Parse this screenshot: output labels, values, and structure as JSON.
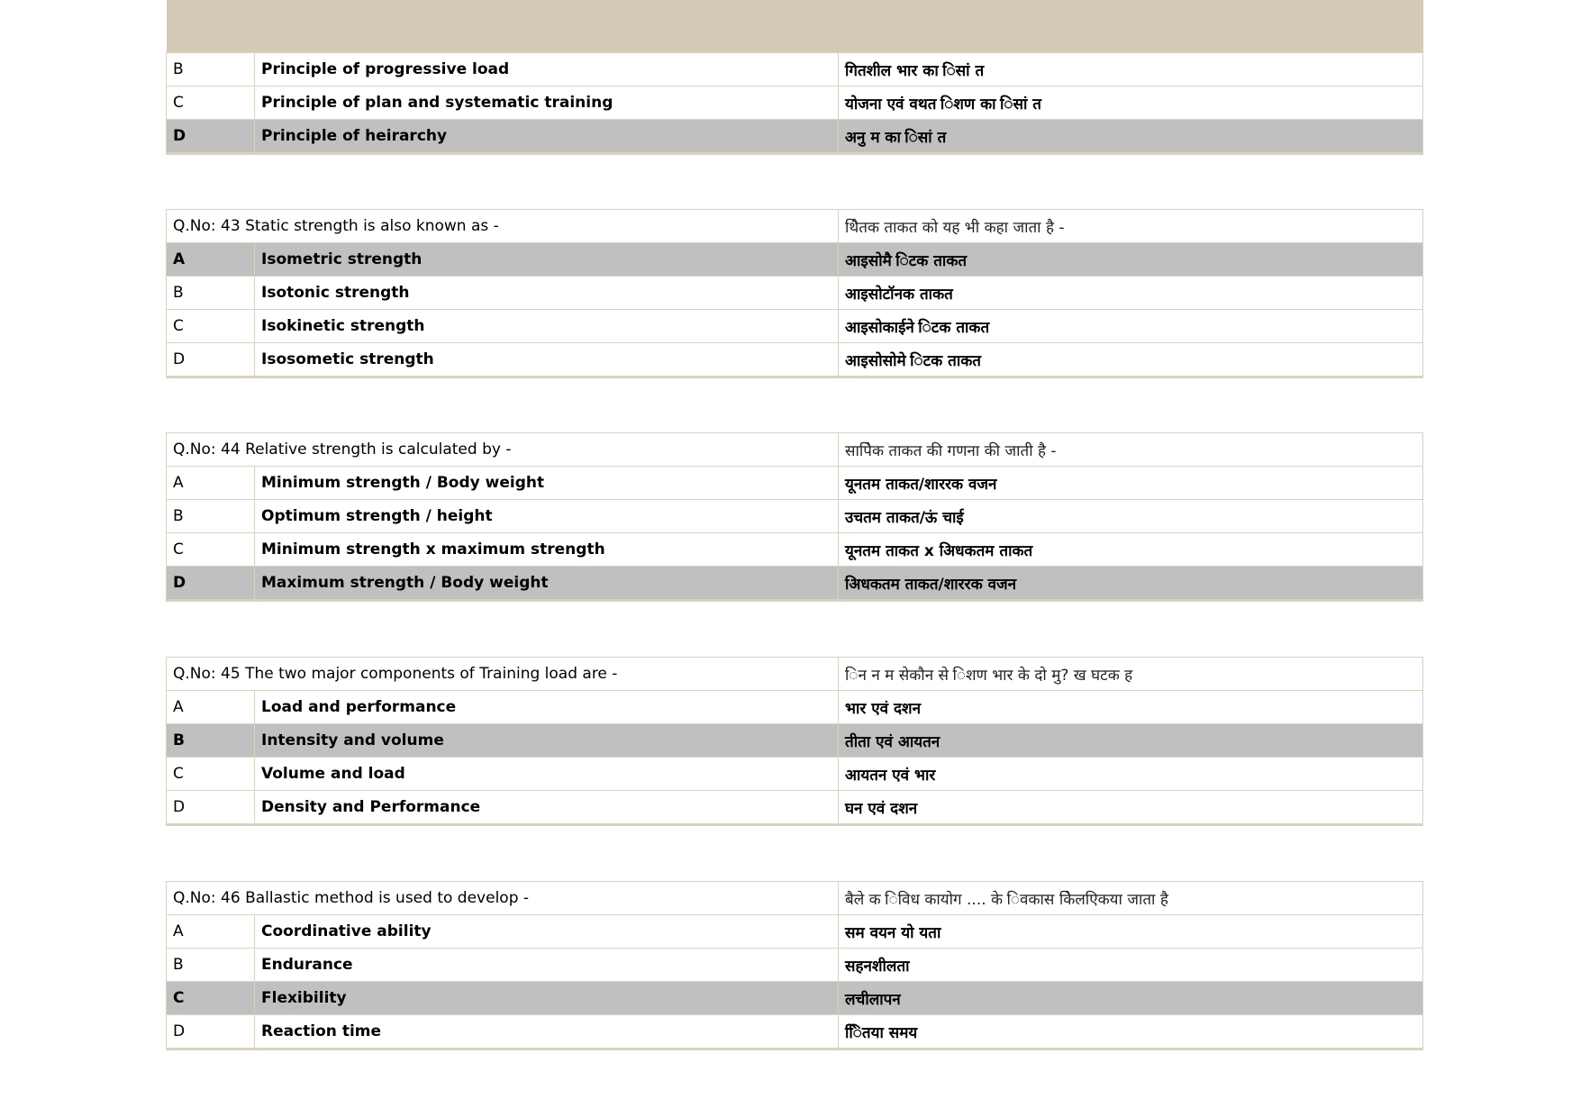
{
  "colors": {
    "header_band": "#d5cab5",
    "correct_row": "#c0c0c0",
    "border": "#d9d2c2"
  },
  "blocks": [
    {
      "header_band": true,
      "options": [
        {
          "letter": "B",
          "en": "Principle of progressive load",
          "hi": " गितशील भार का िसां   त",
          "correct": false
        },
        {
          "letter": "C",
          "en": "Principle of plan and systematic training",
          "hi": "योजना एवं      वथत    िशण का िसां  त",
          "correct": false
        },
        {
          "letter": "D",
          "en": "Principle of heirarchy",
          "hi": "अनु   म का िसां  त",
          "correct": true
        }
      ]
    },
    {
      "question_en": "Q.No: 43 Static strength is also known as -",
      "question_hi": " थैितक ताकत को यह भी कहा जाता है  -",
      "options": [
        {
          "letter": "A",
          "en": "Isometric strength",
          "hi": "आइसोमै  िटक ताकत",
          "correct": true
        },
        {
          "letter": "B",
          "en": "Isotonic strength",
          "hi": "आइसोटॉनक ताकत",
          "correct": false
        },
        {
          "letter": "C",
          "en": "Isokinetic strength",
          "hi": "आइसोकाईने   िटक ताकत",
          "correct": false
        },
        {
          "letter": "D",
          "en": "Isosometic strength",
          "hi": "आइसोसोमे  िटक ताकत",
          "correct": false
        }
      ]
    },
    {
      "question_en": "Q.No: 44 Relative strength is calculated by -",
      "question_hi": "सापेिक ताकत की गणना की जाती है    -",
      "options": [
        {
          "letter": "A",
          "en": "Minimum strength / Body weight",
          "hi": " यूनतम ताकत/शाररक वजन",
          "correct": false
        },
        {
          "letter": "B",
          "en": "Optimum strength / height",
          "hi": " उचतम ताकत/ऊं    चाई",
          "correct": false
        },
        {
          "letter": "C",
          "en": "Minimum strength x maximum strength",
          "hi": " यूनतम ताकत x अिधकतम ताकत",
          "correct": false
        },
        {
          "letter": "D",
          "en": "Maximum strength / Body weight",
          "hi": "अिधकतम ताकत/शाररक वजन",
          "correct": true
        }
      ]
    },
    {
      "question_en": "Q.No: 45 The two major components of Training load are -",
      "question_hi": "िन न म सेकौन से    िशण भार के  दो   मु? ख घटक ह",
      "options": [
        {
          "letter": "A",
          "en": "Load and performance",
          "hi": "भार एवं     दशन",
          "correct": false
        },
        {
          "letter": "B",
          "en": "Intensity and volume",
          "hi": "तीता एवं   आयतन",
          "correct": true
        },
        {
          "letter": "C",
          "en": "Volume and load",
          "hi": "आयतन एवं  भार",
          "correct": false
        },
        {
          "letter": "D",
          "en": "Density and Performance",
          "hi": "घन एवं       दशन",
          "correct": false
        }
      ]
    },
    {
      "question_en": "Q.No: 46 Ballastic method is used to develop -",
      "question_hi": "बैले     क िविध कायोग .... के  िवकास केिलएिकया जाता है",
      "options": [
        {
          "letter": "A",
          "en": "Coordinative ability",
          "hi": " सम  वयन यो यता",
          "correct": false
        },
        {
          "letter": "B",
          "en": "Endurance",
          "hi": "सहनशीलता",
          "correct": false
        },
        {
          "letter": "C",
          "en": "Flexibility",
          "hi": "लचीलापन",
          "correct": true
        },
        {
          "letter": "D",
          "en": "Reaction time",
          "hi": "  िितया समय",
          "correct": false
        }
      ]
    }
  ]
}
